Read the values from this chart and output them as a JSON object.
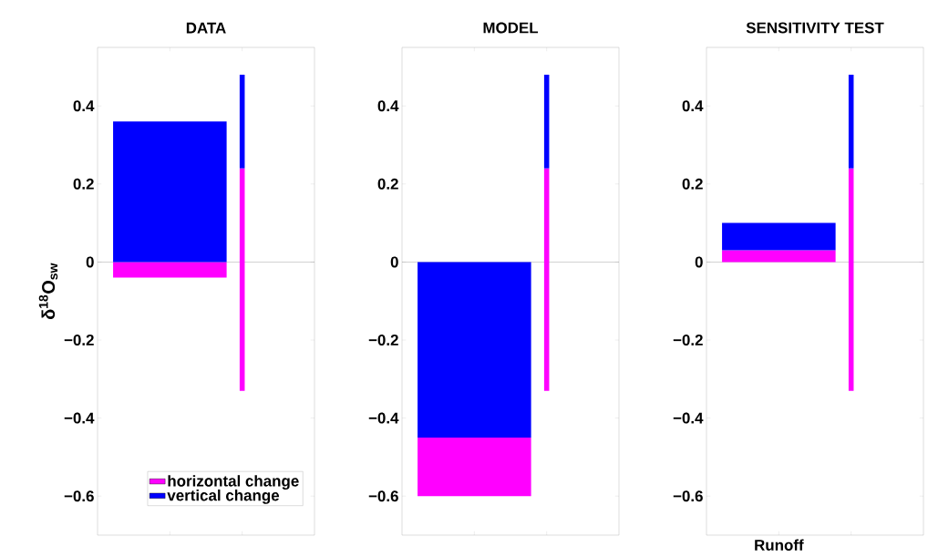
{
  "chart_data": [
    {
      "type": "bar",
      "title": "DATA",
      "ylabel": "δ$^{18}$O$_{sw}$",
      "categories": [
        null,
        null
      ],
      "ylim": [
        -0.7,
        0.55
      ],
      "yticks": [
        {
          "value": -0.6,
          "label": "−0.6"
        },
        {
          "value": -0.4,
          "label": "−0.4"
        },
        {
          "value": -0.2,
          "label": "−0.2"
        },
        0,
        0.2,
        0.4
      ],
      "legend": "bottom",
      "ref_lines": [
        {
          "axis": "y",
          "value": 0
        }
      ],
      "series": [
        {
          "name": "horizontal change",
          "color": "#ff00ff",
          "base": [
            0,
            -0.33
          ],
          "values": [
            -0.04,
            0.57
          ]
        },
        {
          "name": "vertical change",
          "color": "#0000ff",
          "base": [
            0,
            0.24
          ],
          "values": [
            0.36,
            0.24
          ]
        }
      ]
    },
    {
      "type": "bar",
      "title": "MODEL",
      "categories": [
        null,
        null
      ],
      "ylim": [
        -0.7,
        0.55
      ],
      "yticks": [
        {
          "value": -0.6,
          "label": "−0.6"
        },
        {
          "value": -0.4,
          "label": "−0.4"
        },
        {
          "value": -0.2,
          "label": "−0.2"
        },
        0,
        0.2,
        0.4
      ],
      "ref_lines": [
        {
          "axis": "y",
          "value": 0
        }
      ],
      "series": [
        {
          "color": "#ff00ff",
          "base": [
            -0.45,
            -0.33
          ],
          "values": [
            -0.15,
            0.57
          ]
        },
        {
          "color": "#0000ff",
          "base": [
            0,
            0.24
          ],
          "values": [
            -0.45,
            0.24
          ]
        }
      ]
    },
    {
      "type": "bar",
      "title": "SENSITIVITY TEST",
      "categories": [
        "Runoff",
        null
      ],
      "ylim": [
        -0.7,
        0.55
      ],
      "yticks": [
        {
          "value": -0.6,
          "label": "−0.6"
        },
        {
          "value": -0.4,
          "label": "−0.4"
        },
        {
          "value": -0.2,
          "label": "−0.2"
        },
        0,
        0.2,
        0.4
      ],
      "ref_lines": [
        {
          "axis": "y",
          "value": 0
        }
      ],
      "series": [
        {
          "color": "#ff00ff",
          "base": [
            0,
            -0.33
          ],
          "values": [
            0.03,
            0.57
          ]
        },
        {
          "color": "#0000ff",
          "base": [
            0.03,
            0.24
          ],
          "values": [
            0.07,
            0.24
          ]
        }
      ]
    }
  ]
}
